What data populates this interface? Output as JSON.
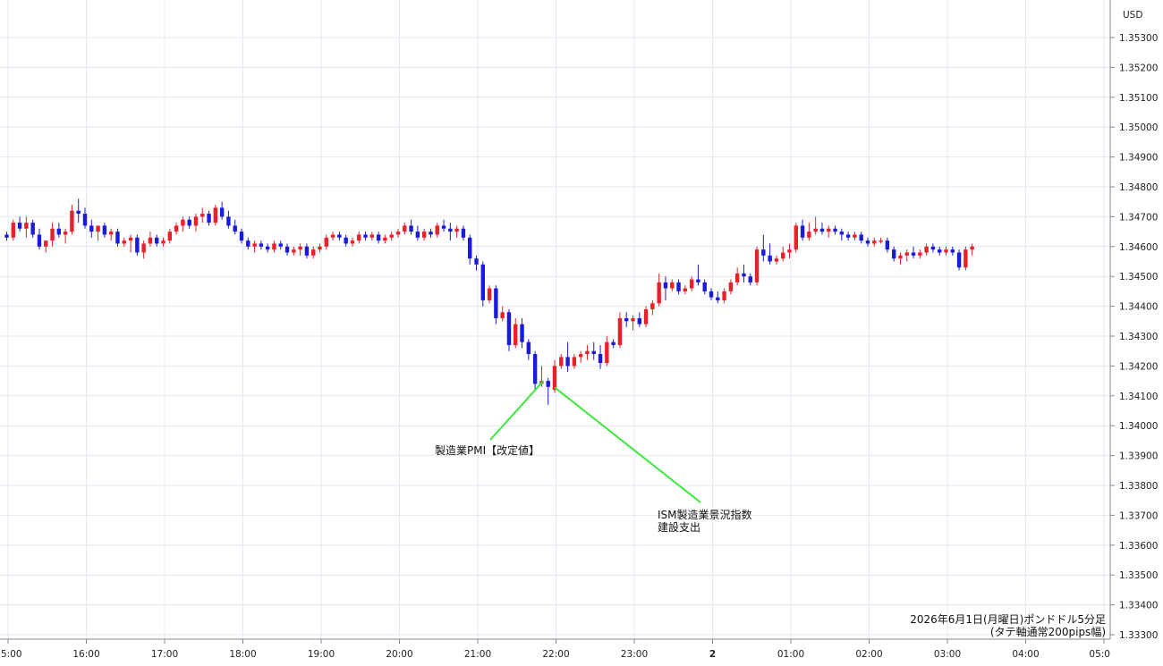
{
  "chart_data": {
    "type": "candlestick",
    "title": "2026年6月1日(月曜日)ポンドドル5分足",
    "subtitle": "(タテ軸通常200pips幅)",
    "currency_label": "USD",
    "ylim": [
      1.333,
      1.3538
    ],
    "y_ticks": [
      "1.35300",
      "1.35200",
      "1.35100",
      "1.35000",
      "1.34900",
      "1.34800",
      "1.34700",
      "1.34600",
      "1.34500",
      "1.34400",
      "1.34300",
      "1.34200",
      "1.34100",
      "1.34000",
      "1.33900",
      "1.33800",
      "1.33700",
      "1.33600",
      "1.33500",
      "1.33400",
      "1.33300"
    ],
    "x_ticks": [
      "5:00",
      "16:00",
      "17:00",
      "18:00",
      "19:00",
      "20:00",
      "21:00",
      "22:00",
      "23:00",
      "2",
      "01:00",
      "02:00",
      "03:00",
      "04:00",
      "05:0"
    ],
    "grid": true,
    "up_color": "#e8202a",
    "down_color": "#1a1adc",
    "annotations": [
      {
        "label": "製造業PMI【改定値】",
        "candle_index": 82
      },
      {
        "label": "ISM製造業景況指数",
        "label2": "建設支出",
        "candle_index": 84
      }
    ],
    "candles": [
      [
        1.3464,
        1.3465,
        1.3462,
        1.3463
      ],
      [
        1.3463,
        1.3469,
        1.3462,
        1.3468
      ],
      [
        1.3468,
        1.347,
        1.3465,
        1.3466
      ],
      [
        1.3466,
        1.347,
        1.3463,
        1.3468
      ],
      [
        1.3468,
        1.3469,
        1.3463,
        1.3464
      ],
      [
        1.3464,
        1.3466,
        1.3459,
        1.346
      ],
      [
        1.346,
        1.3462,
        1.3458,
        1.3462
      ],
      [
        1.3462,
        1.3468,
        1.346,
        1.3466
      ],
      [
        1.3466,
        1.3468,
        1.3463,
        1.3464
      ],
      [
        1.3464,
        1.3466,
        1.3461,
        1.3465
      ],
      [
        1.3465,
        1.3474,
        1.3464,
        1.3472
      ],
      [
        1.3472,
        1.3476,
        1.3468,
        1.3471
      ],
      [
        1.3471,
        1.3473,
        1.3466,
        1.3467
      ],
      [
        1.3467,
        1.3469,
        1.3463,
        1.3465
      ],
      [
        1.3465,
        1.3467,
        1.3462,
        1.3467
      ],
      [
        1.3467,
        1.3468,
        1.3463,
        1.3464
      ],
      [
        1.3464,
        1.3466,
        1.3462,
        1.3465
      ],
      [
        1.3465,
        1.3466,
        1.346,
        1.3461
      ],
      [
        1.3461,
        1.3463,
        1.346,
        1.3462
      ],
      [
        1.3462,
        1.3464,
        1.3458,
        1.3463
      ],
      [
        1.3463,
        1.3464,
        1.3457,
        1.3458
      ],
      [
        1.3458,
        1.3462,
        1.3456,
        1.3461
      ],
      [
        1.3461,
        1.3465,
        1.346,
        1.3463
      ],
      [
        1.3463,
        1.3464,
        1.346,
        1.3461
      ],
      [
        1.3461,
        1.3463,
        1.346,
        1.3462
      ],
      [
        1.3462,
        1.3466,
        1.3461,
        1.3465
      ],
      [
        1.3465,
        1.3468,
        1.3464,
        1.3467
      ],
      [
        1.3467,
        1.347,
        1.3465,
        1.3469
      ],
      [
        1.3469,
        1.347,
        1.3466,
        1.3467
      ],
      [
        1.3467,
        1.3471,
        1.3465,
        1.347
      ],
      [
        1.347,
        1.3473,
        1.3468,
        1.3471
      ],
      [
        1.3471,
        1.3472,
        1.3467,
        1.3468
      ],
      [
        1.3468,
        1.3474,
        1.3467,
        1.3473
      ],
      [
        1.3473,
        1.3475,
        1.3469,
        1.347
      ],
      [
        1.347,
        1.3472,
        1.3466,
        1.3467
      ],
      [
        1.3467,
        1.3469,
        1.3464,
        1.3465
      ],
      [
        1.3465,
        1.3466,
        1.3461,
        1.3462
      ],
      [
        1.3462,
        1.3463,
        1.3459,
        1.346
      ],
      [
        1.346,
        1.3462,
        1.3458,
        1.3461
      ],
      [
        1.3461,
        1.3462,
        1.3459,
        1.346
      ],
      [
        1.346,
        1.3461,
        1.3458,
        1.3459
      ],
      [
        1.3459,
        1.3462,
        1.3458,
        1.3461
      ],
      [
        1.3461,
        1.3462,
        1.3459,
        1.346
      ],
      [
        1.346,
        1.3461,
        1.3457,
        1.3458
      ],
      [
        1.3458,
        1.346,
        1.3457,
        1.3459
      ],
      [
        1.3459,
        1.3461,
        1.3457,
        1.346
      ],
      [
        1.346,
        1.3461,
        1.3456,
        1.3457
      ],
      [
        1.3457,
        1.346,
        1.3456,
        1.3459
      ],
      [
        1.3459,
        1.3461,
        1.3458,
        1.346
      ],
      [
        1.346,
        1.3464,
        1.3459,
        1.3463
      ],
      [
        1.3463,
        1.3465,
        1.3462,
        1.3464
      ],
      [
        1.3464,
        1.3465,
        1.3462,
        1.3463
      ],
      [
        1.3463,
        1.3464,
        1.346,
        1.3461
      ],
      [
        1.3461,
        1.3463,
        1.346,
        1.3462
      ],
      [
        1.3462,
        1.3465,
        1.3461,
        1.3464
      ],
      [
        1.3464,
        1.3465,
        1.3462,
        1.3463
      ],
      [
        1.3463,
        1.3465,
        1.3462,
        1.3464
      ],
      [
        1.3464,
        1.3465,
        1.3461,
        1.3462
      ],
      [
        1.3462,
        1.3464,
        1.3461,
        1.3463
      ],
      [
        1.3463,
        1.3465,
        1.3462,
        1.3464
      ],
      [
        1.3464,
        1.3466,
        1.3463,
        1.3465
      ],
      [
        1.3465,
        1.3468,
        1.3464,
        1.3467
      ],
      [
        1.3467,
        1.3469,
        1.3464,
        1.3465
      ],
      [
        1.3465,
        1.3467,
        1.3462,
        1.3463
      ],
      [
        1.3463,
        1.3466,
        1.3462,
        1.3465
      ],
      [
        1.3465,
        1.3466,
        1.3463,
        1.3464
      ],
      [
        1.3464,
        1.3468,
        1.3463,
        1.3467
      ],
      [
        1.3467,
        1.3469,
        1.3465,
        1.3466
      ],
      [
        1.3466,
        1.3468,
        1.3462,
        1.3465
      ],
      [
        1.3465,
        1.3467,
        1.3463,
        1.3466
      ],
      [
        1.3466,
        1.3467,
        1.3462,
        1.3463
      ],
      [
        1.3463,
        1.3464,
        1.3454,
        1.3456
      ],
      [
        1.3456,
        1.3457,
        1.3452,
        1.3454
      ],
      [
        1.3454,
        1.3455,
        1.344,
        1.3442
      ],
      [
        1.3442,
        1.3447,
        1.3441,
        1.3446
      ],
      [
        1.3446,
        1.3447,
        1.3434,
        1.3436
      ],
      [
        1.3436,
        1.344,
        1.3435,
        1.3438
      ],
      [
        1.3438,
        1.3439,
        1.3425,
        1.3427
      ],
      [
        1.3427,
        1.3436,
        1.3426,
        1.3434
      ],
      [
        1.3434,
        1.3436,
        1.3426,
        1.3428
      ],
      [
        1.3428,
        1.3429,
        1.3422,
        1.3424
      ],
      [
        1.3424,
        1.3425,
        1.3412,
        1.3414
      ],
      [
        1.3414,
        1.342,
        1.3413,
        1.3415
      ],
      [
        1.3415,
        1.3416,
        1.3407,
        1.3413
      ],
      [
        1.3412,
        1.3422,
        1.3411,
        1.342
      ],
      [
        1.342,
        1.3424,
        1.3419,
        1.3423
      ],
      [
        1.3423,
        1.3428,
        1.3418,
        1.342
      ],
      [
        1.342,
        1.3424,
        1.3419,
        1.3423
      ],
      [
        1.3423,
        1.3425,
        1.3421,
        1.3424
      ],
      [
        1.3424,
        1.3427,
        1.3422,
        1.3425
      ],
      [
        1.3425,
        1.3428,
        1.3422,
        1.3424
      ],
      [
        1.3424,
        1.3427,
        1.3419,
        1.3421
      ],
      [
        1.3421,
        1.343,
        1.342,
        1.3428
      ],
      [
        1.3428,
        1.3429,
        1.3426,
        1.3427
      ],
      [
        1.3427,
        1.3438,
        1.3426,
        1.3436
      ],
      [
        1.3436,
        1.3438,
        1.3433,
        1.3435
      ],
      [
        1.3435,
        1.3437,
        1.3432,
        1.3436
      ],
      [
        1.3436,
        1.3438,
        1.3433,
        1.3434
      ],
      [
        1.3434,
        1.344,
        1.3433,
        1.3439
      ],
      [
        1.3439,
        1.3442,
        1.3437,
        1.3441
      ],
      [
        1.3441,
        1.3451,
        1.344,
        1.3448
      ],
      [
        1.3448,
        1.345,
        1.3442,
        1.3446
      ],
      [
        1.3446,
        1.3449,
        1.3445,
        1.3448
      ],
      [
        1.3448,
        1.3449,
        1.3444,
        1.3445
      ],
      [
        1.3445,
        1.3447,
        1.3444,
        1.3446
      ],
      [
        1.3446,
        1.345,
        1.3445,
        1.3449
      ],
      [
        1.3449,
        1.3454,
        1.3447,
        1.3448
      ],
      [
        1.3448,
        1.3449,
        1.3444,
        1.3445
      ],
      [
        1.3445,
        1.3446,
        1.3442,
        1.3443
      ],
      [
        1.3443,
        1.3445,
        1.3441,
        1.3442
      ],
      [
        1.3442,
        1.3446,
        1.3441,
        1.3445
      ],
      [
        1.3445,
        1.3449,
        1.3444,
        1.3448
      ],
      [
        1.3448,
        1.3453,
        1.3447,
        1.3451
      ],
      [
        1.3451,
        1.3454,
        1.3448,
        1.345
      ],
      [
        1.345,
        1.3451,
        1.3447,
        1.3448
      ],
      [
        1.3448,
        1.346,
        1.3447,
        1.3459
      ],
      [
        1.3459,
        1.3464,
        1.3455,
        1.3457
      ],
      [
        1.3457,
        1.3461,
        1.3454,
        1.3455
      ],
      [
        1.3455,
        1.3457,
        1.3454,
        1.3456
      ],
      [
        1.3456,
        1.346,
        1.3455,
        1.3458
      ],
      [
        1.3458,
        1.3461,
        1.3456,
        1.3459
      ],
      [
        1.3459,
        1.3468,
        1.3458,
        1.3467
      ],
      [
        1.3467,
        1.3469,
        1.3462,
        1.3463
      ],
      [
        1.3463,
        1.3468,
        1.3462,
        1.3465
      ],
      [
        1.3465,
        1.347,
        1.3464,
        1.3466
      ],
      [
        1.3466,
        1.3468,
        1.3464,
        1.3465
      ],
      [
        1.3465,
        1.3467,
        1.3463,
        1.3466
      ],
      [
        1.3466,
        1.3467,
        1.3464,
        1.3465
      ],
      [
        1.3465,
        1.3466,
        1.3462,
        1.3464
      ],
      [
        1.3464,
        1.3465,
        1.3462,
        1.3463
      ],
      [
        1.3463,
        1.3465,
        1.3462,
        1.3464
      ],
      [
        1.3464,
        1.3465,
        1.3461,
        1.3462
      ],
      [
        1.3462,
        1.3463,
        1.346,
        1.3461
      ],
      [
        1.3461,
        1.3463,
        1.346,
        1.3462
      ],
      [
        1.3462,
        1.3463,
        1.3461,
        1.3462
      ],
      [
        1.3462,
        1.3463,
        1.3458,
        1.3459
      ],
      [
        1.3459,
        1.346,
        1.3455,
        1.3456
      ],
      [
        1.3456,
        1.3458,
        1.3454,
        1.3457
      ],
      [
        1.3457,
        1.3459,
        1.3455,
        1.3458
      ],
      [
        1.3458,
        1.346,
        1.3456,
        1.3457
      ],
      [
        1.3457,
        1.3459,
        1.3456,
        1.3458
      ],
      [
        1.3458,
        1.3461,
        1.3457,
        1.346
      ],
      [
        1.346,
        1.3461,
        1.3458,
        1.3459
      ],
      [
        1.3459,
        1.346,
        1.3457,
        1.3458
      ],
      [
        1.3458,
        1.346,
        1.3457,
        1.3459
      ],
      [
        1.3459,
        1.346,
        1.3457,
        1.3458
      ],
      [
        1.3458,
        1.3459,
        1.3452,
        1.3453
      ],
      [
        1.3453,
        1.346,
        1.3452,
        1.3459
      ],
      [
        1.3459,
        1.3461,
        1.3457,
        1.346
      ]
    ]
  }
}
